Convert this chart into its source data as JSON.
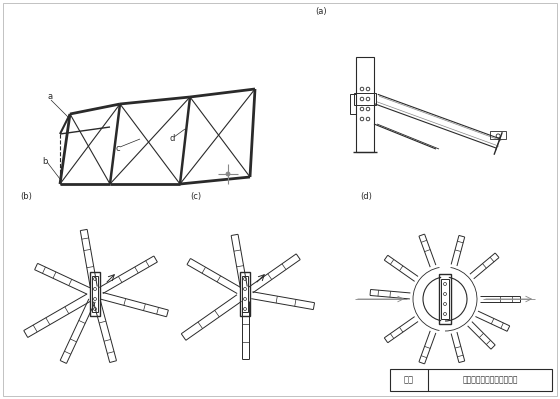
{
  "bg_color": "#ffffff",
  "line_color": "#2a2a2a",
  "gray_color": "#888888",
  "label_a": "a",
  "label_b": "b",
  "label_c": "c",
  "label_d": "d",
  "fig_label_a": "(a)",
  "fig_label_b": "(b)",
  "fig_label_c": "(c)",
  "fig_label_d": "(d)",
  "table_label": "图名",
  "table_text": "多竖杆式天窗架节构造详图"
}
